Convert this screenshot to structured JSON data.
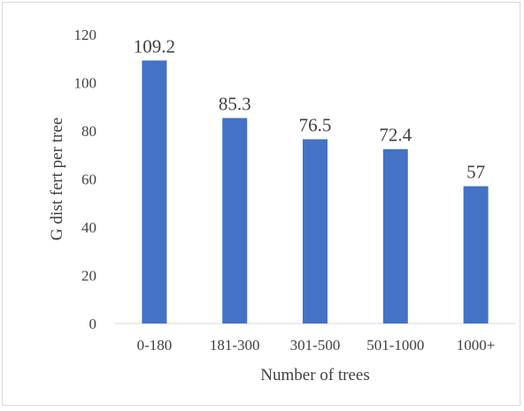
{
  "chart_data": {
    "type": "bar",
    "title": "",
    "xlabel": "Number of trees",
    "ylabel": "G dist fert per tree",
    "categories": [
      "0-180",
      "181-300",
      "301-500",
      "501-1000",
      "1000+"
    ],
    "values": [
      109.2,
      85.3,
      76.5,
      72.4,
      57
    ],
    "data_labels": [
      "109.2",
      "85.3",
      "76.5",
      "72.4",
      "57"
    ],
    "ylim": [
      0,
      120
    ],
    "yticks": [
      0,
      20,
      40,
      60,
      80,
      100,
      120
    ],
    "grid": false,
    "legend": "none",
    "bar_color": "#4472c4"
  }
}
